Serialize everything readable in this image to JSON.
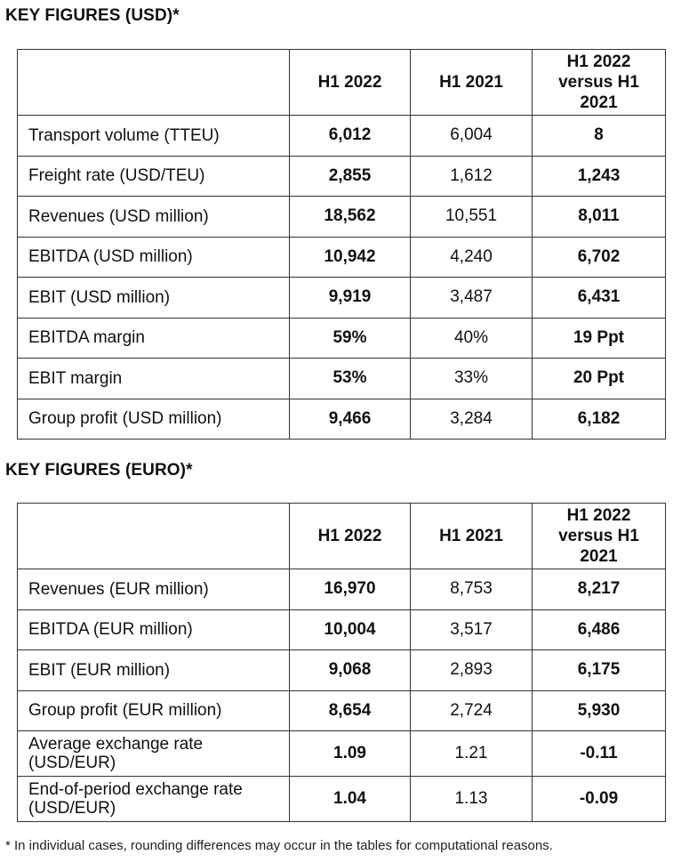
{
  "usd": {
    "title": "KEY FIGURES (USD)*",
    "headers": [
      "",
      "H1 2022",
      "H1 2021",
      "H1 2022 versus H1 2021"
    ],
    "rows": [
      {
        "label": "Transport volume (TTEU)",
        "h1_2022": "6,012",
        "h1_2021": "6,004",
        "change": "8"
      },
      {
        "label": "Freight rate (USD/TEU)",
        "h1_2022": "2,855",
        "h1_2021": "1,612",
        "change": "1,243"
      },
      {
        "label": "Revenues (USD million)",
        "h1_2022": "18,562",
        "h1_2021": "10,551",
        "change": "8,011"
      },
      {
        "label": "EBITDA (USD million)",
        "h1_2022": "10,942",
        "h1_2021": "4,240",
        "change": "6,702"
      },
      {
        "label": "EBIT (USD million)",
        "h1_2022": "9,919",
        "h1_2021": "3,487",
        "change": "6,431"
      },
      {
        "label": "EBITDA margin",
        "h1_2022": "59%",
        "h1_2021": "40%",
        "change": "19 Ppt"
      },
      {
        "label": "EBIT margin",
        "h1_2022": "53%",
        "h1_2021": "33%",
        "change": "20 Ppt"
      },
      {
        "label": "Group profit (USD million)",
        "h1_2022": "9,466",
        "h1_2021": "3,284",
        "change": "6,182"
      }
    ]
  },
  "eur": {
    "title": "KEY FIGURES (EURO)*",
    "headers": [
      "",
      "H1 2022",
      "H1 2021",
      "H1 2022 versus H1 2021"
    ],
    "rows": [
      {
        "label": "Revenues (EUR million)",
        "h1_2022": "16,970",
        "h1_2021": "8,753",
        "change": "8,217"
      },
      {
        "label": "EBITDA (EUR million)",
        "h1_2022": "10,004",
        "h1_2021": "3,517",
        "change": "6,486"
      },
      {
        "label": "EBIT (EUR million)",
        "h1_2022": "9,068",
        "h1_2021": "2,893",
        "change": "6,175"
      },
      {
        "label": "Group profit (EUR million)",
        "h1_2022": "8,654",
        "h1_2021": "2,724",
        "change": "5,930"
      },
      {
        "label": "Average exchange rate (USD/EUR)",
        "h1_2022": "1.09",
        "h1_2021": "1.21",
        "change": "-0.11"
      },
      {
        "label": "End-of-period exchange rate (USD/EUR)",
        "h1_2022": "1.04",
        "h1_2021": "1.13",
        "change": "-0.09"
      }
    ]
  },
  "footnote": "* In individual cases, rounding differences may occur in the tables for computational reasons."
}
